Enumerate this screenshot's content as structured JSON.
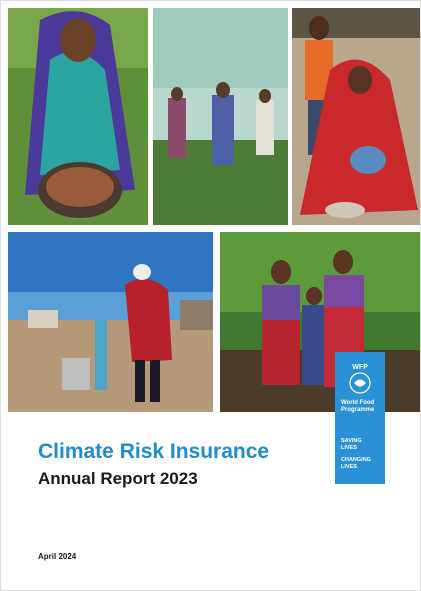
{
  "cover": {
    "title": "Climate Risk Insurance",
    "subtitle": "Annual Report 2023",
    "date": "April 2024",
    "logo": {
      "acronym": "WFP",
      "name_lines": [
        "World Food",
        "Programme"
      ],
      "tagline_lines": [
        "SAVING",
        "LIVES",
        "CHANGING",
        "LIVES"
      ]
    }
  }
}
